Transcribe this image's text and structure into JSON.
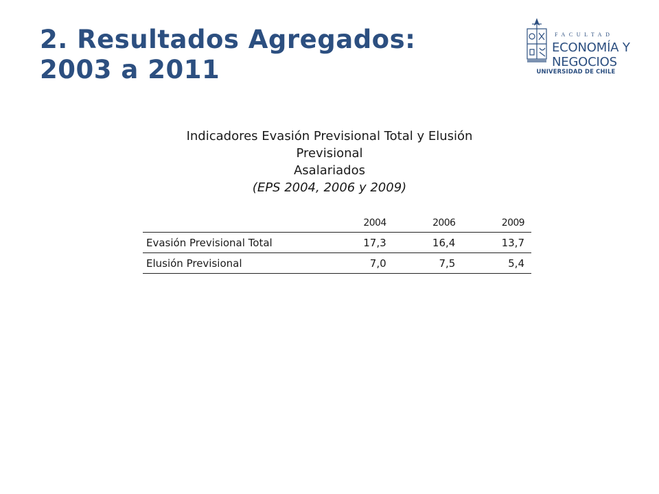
{
  "slide": {
    "title_line1": "2. Resultados Agregados:",
    "title_line2": "2003 a 2011"
  },
  "logo": {
    "facultad": "FACULTAD",
    "line1": "ECONOMÍA Y",
    "line2": "NEGOCIOS",
    "university": "UNIVERSIDAD DE CHILE"
  },
  "table_caption": {
    "line1": "Indicadores Evasión Previsional Total y Elusión",
    "line2": "Previsional",
    "line3": "Asalariados",
    "line4": "(EPS 2004, 2006 y 2009)"
  },
  "table": {
    "columns": [
      "",
      "2004",
      "2006",
      "2009"
    ],
    "rows": [
      {
        "label": "Evasión Previsional Total",
        "values": [
          "17,3",
          "16,4",
          "13,7"
        ]
      },
      {
        "label": "Elusión Previsional",
        "values": [
          "7,0",
          "7,5",
          "5,4"
        ]
      }
    ]
  },
  "colors": {
    "title": "#2c4f80",
    "text": "#1a1a1a",
    "background": "#ffffff"
  }
}
